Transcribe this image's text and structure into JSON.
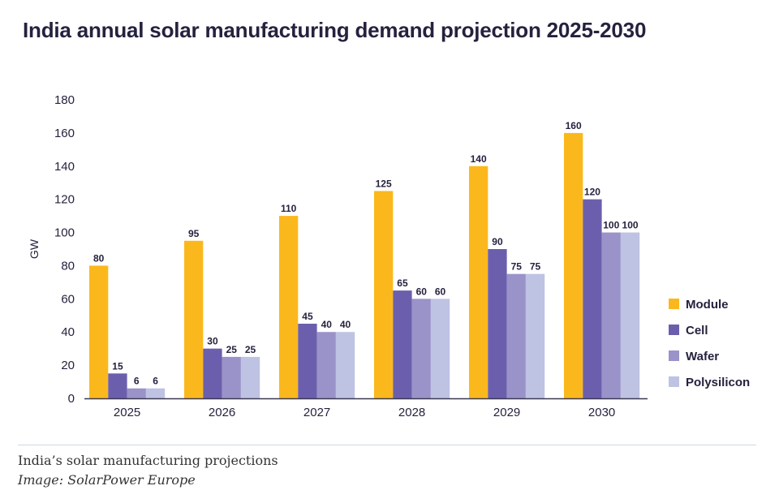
{
  "caption": "India’s solar manufacturing projections",
  "credit": "Image: SolarPower Europe",
  "colors": {
    "module": "#fbb81c",
    "cell": "#6b5fad",
    "wafer": "#9a93c9",
    "polysilicon": "#bec3e3",
    "text": "#25223e",
    "axis": "#3b3850"
  },
  "chart_data": {
    "type": "bar",
    "title": "India annual solar manufacturing demand projection 2025-2030",
    "xlabel": "",
    "ylabel": "GW",
    "ylim": [
      0,
      180
    ],
    "yticks": [
      0,
      20,
      40,
      60,
      80,
      100,
      120,
      140,
      160,
      180
    ],
    "categories": [
      "2025",
      "2026",
      "2027",
      "2028",
      "2029",
      "2030"
    ],
    "series": [
      {
        "name": "Module",
        "color": "#fbb81c",
        "values": [
          80,
          95,
          110,
          125,
          140,
          160
        ]
      },
      {
        "name": "Cell",
        "color": "#6b5fad",
        "values": [
          15,
          30,
          45,
          65,
          90,
          120
        ]
      },
      {
        "name": "Wafer",
        "color": "#9a93c9",
        "values": [
          6,
          25,
          40,
          60,
          75,
          100
        ]
      },
      {
        "name": "Polysilicon",
        "color": "#bec3e3",
        "values": [
          6,
          25,
          40,
          60,
          75,
          100
        ]
      }
    ],
    "legend_position": "right",
    "grid": false
  }
}
